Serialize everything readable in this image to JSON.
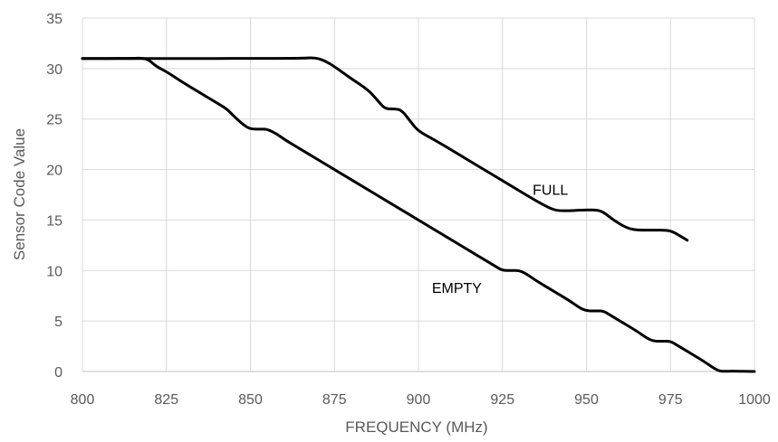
{
  "chart_data": {
    "type": "line",
    "title": "",
    "xlabel": "FREQUENCY (MHz)",
    "ylabel": "Sensor Code Value",
    "xlim": [
      800,
      1000
    ],
    "ylim": [
      0,
      35
    ],
    "x_ticks": [
      800,
      825,
      850,
      875,
      900,
      925,
      950,
      975,
      1000
    ],
    "y_ticks": [
      0,
      5,
      10,
      15,
      20,
      25,
      30,
      35
    ],
    "grid": true,
    "line_color": "#000000",
    "grid_color": "#d9d9d9",
    "series": [
      {
        "name": "FULL",
        "points": [
          [
            800,
            31
          ],
          [
            815,
            31
          ],
          [
            865,
            31
          ],
          [
            869,
            31.1
          ],
          [
            872,
            30.8
          ],
          [
            875,
            30.2
          ],
          [
            880,
            29
          ],
          [
            885,
            27.9
          ],
          [
            888,
            26.8
          ],
          [
            890,
            26
          ],
          [
            893,
            26
          ],
          [
            895,
            25.9
          ],
          [
            898,
            24.6
          ],
          [
            900,
            23.8
          ],
          [
            905,
            22.9
          ],
          [
            910,
            21.9
          ],
          [
            915,
            20.9
          ],
          [
            920,
            19.9
          ],
          [
            925,
            18.9
          ],
          [
            930,
            17.9
          ],
          [
            935,
            16.9
          ],
          [
            940,
            16
          ],
          [
            943,
            15.9
          ],
          [
            950,
            16
          ],
          [
            953,
            16
          ],
          [
            955,
            15.8
          ],
          [
            958,
            15
          ],
          [
            962,
            14.2
          ],
          [
            965,
            14
          ],
          [
            970,
            14
          ],
          [
            974,
            14
          ],
          [
            976,
            13.8
          ],
          [
            980,
            13
          ]
        ]
      },
      {
        "name": "EMPTY",
        "points": [
          [
            800,
            31
          ],
          [
            815,
            31
          ],
          [
            818,
            31.05
          ],
          [
            820,
            30.8
          ],
          [
            822,
            30.2
          ],
          [
            825,
            29.7
          ],
          [
            830,
            28.6
          ],
          [
            835,
            27.6
          ],
          [
            840,
            26.6
          ],
          [
            843,
            26
          ],
          [
            845,
            25.3
          ],
          [
            848,
            24.4
          ],
          [
            850,
            24
          ],
          [
            853,
            24
          ],
          [
            855,
            24
          ],
          [
            858,
            23.5
          ],
          [
            860,
            23
          ],
          [
            865,
            22
          ],
          [
            870,
            21
          ],
          [
            875,
            20
          ],
          [
            880,
            19
          ],
          [
            885,
            18
          ],
          [
            890,
            17
          ],
          [
            895,
            16
          ],
          [
            900,
            15
          ],
          [
            905,
            14
          ],
          [
            910,
            13
          ],
          [
            915,
            12
          ],
          [
            920,
            11
          ],
          [
            923,
            10.4
          ],
          [
            925,
            10
          ],
          [
            928,
            10
          ],
          [
            930,
            10
          ],
          [
            932,
            9.7
          ],
          [
            935,
            9
          ],
          [
            940,
            8
          ],
          [
            945,
            7
          ],
          [
            948,
            6.3
          ],
          [
            950,
            6
          ],
          [
            953,
            6
          ],
          [
            955,
            6
          ],
          [
            957,
            5.6
          ],
          [
            960,
            5
          ],
          [
            965,
            4
          ],
          [
            968,
            3.3
          ],
          [
            970,
            3
          ],
          [
            973,
            3
          ],
          [
            975,
            3
          ],
          [
            977,
            2.6
          ],
          [
            980,
            2
          ],
          [
            985,
            1
          ],
          [
            988,
            0.3
          ],
          [
            990,
            0
          ],
          [
            993,
            0.05
          ],
          [
            1000,
            0
          ]
        ]
      }
    ]
  }
}
